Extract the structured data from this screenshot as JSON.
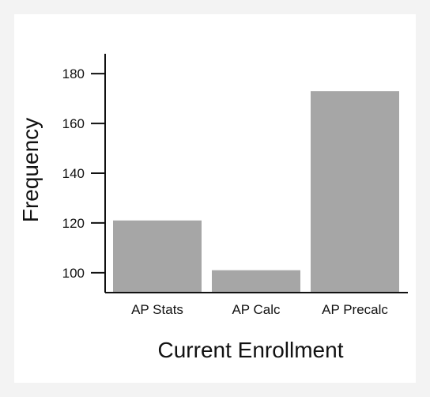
{
  "chart_data": {
    "type": "bar",
    "title": "",
    "xlabel": "Current Enrollment",
    "ylabel": "Frequency",
    "categories": [
      "AP Stats",
      "AP Calc",
      "AP Precalc"
    ],
    "values": [
      121,
      101,
      173
    ],
    "ylim": [
      92,
      188
    ],
    "yticks": [
      100,
      120,
      140,
      160,
      180
    ],
    "grid": false,
    "legend": "none",
    "colors": {
      "bar": "#a6a6a6",
      "axis": "#111111"
    }
  }
}
